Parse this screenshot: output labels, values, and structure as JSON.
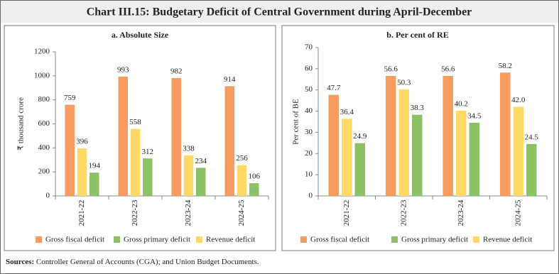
{
  "title": "Chart III.15: Budgetary Deficit of Central Government during April-December",
  "sources_label": "Sources:",
  "sources": "Controller General of Accounts (CGA); and Union Budget Documents.",
  "chart_data": [
    {
      "type": "bar",
      "title": "a. Absolute Size",
      "y_label": "₹ thousand crore",
      "categories": [
        "2021-22",
        "2022-23",
        "2023-24",
        "2024-25"
      ],
      "series": [
        {
          "name": "Gross fiscal deficit",
          "color": "#f79b5e",
          "values": [
            759,
            993,
            982,
            914
          ]
        },
        {
          "name": "Revenue deficit",
          "color": "#ffd966",
          "values": [
            396,
            558,
            338,
            256
          ]
        },
        {
          "name": "Gross primary deficit",
          "color": "#8cc168",
          "values": [
            194,
            312,
            234,
            106
          ]
        }
      ],
      "ylim": [
        0,
        1200
      ],
      "yticks": [
        0,
        200,
        400,
        600,
        800,
        1000,
        1200
      ],
      "grid": false
    },
    {
      "type": "bar",
      "title": "b. Per cent of RE",
      "y_label": "Per cent of BE",
      "categories": [
        "2021-22",
        "2022-23",
        "2023-24",
        "2024-25"
      ],
      "series": [
        {
          "name": "Gross fiscal deficit",
          "color": "#f79b5e",
          "values": [
            47.7,
            56.6,
            56.6,
            58.2
          ]
        },
        {
          "name": "Revenue deficit",
          "color": "#ffd966",
          "values": [
            36.4,
            50.3,
            40.2,
            42.0
          ],
          "value_labels": [
            "36.4",
            "50.3",
            "40.2",
            "42.0"
          ]
        },
        {
          "name": "Gross primary deficit",
          "color": "#8cc168",
          "values": [
            24.9,
            38.3,
            34.5,
            24.5
          ]
        }
      ],
      "ylim": [
        0,
        70
      ],
      "yticks": [
        0,
        10,
        20,
        30,
        40,
        50,
        60,
        70
      ],
      "grid": false
    }
  ]
}
